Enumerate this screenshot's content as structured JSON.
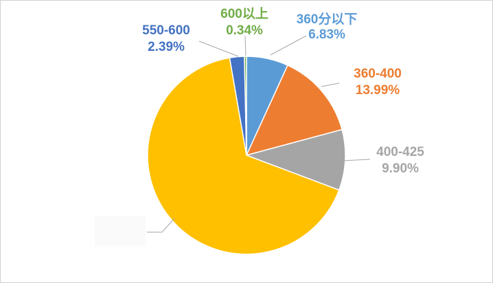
{
  "chart_data": {
    "type": "pie",
    "series": [
      {
        "slices": [
          {
            "label": "360分以下",
            "value": 6.83,
            "value_label": "6.83%",
            "color": "#5B9BD5"
          },
          {
            "label": "360-400",
            "value": 13.99,
            "value_label": "13.99%",
            "color": "#ED7D31"
          },
          {
            "label": "400-425",
            "value": 9.9,
            "value_label": "9.90%",
            "color": "#A5A5A5"
          },
          {
            "label": "",
            "value": 66.55,
            "value_label": "",
            "color": "#FFC000"
          },
          {
            "label": "550-600",
            "value": 2.39,
            "value_label": "2.39%",
            "color": "#4472C4"
          },
          {
            "label": "600以上",
            "value": 0.34,
            "value_label": "0.34%",
            "color": "#70AD47"
          }
        ]
      }
    ],
    "legend": "none",
    "start_angle": "12 o'clock",
    "direction": "clockwise"
  }
}
